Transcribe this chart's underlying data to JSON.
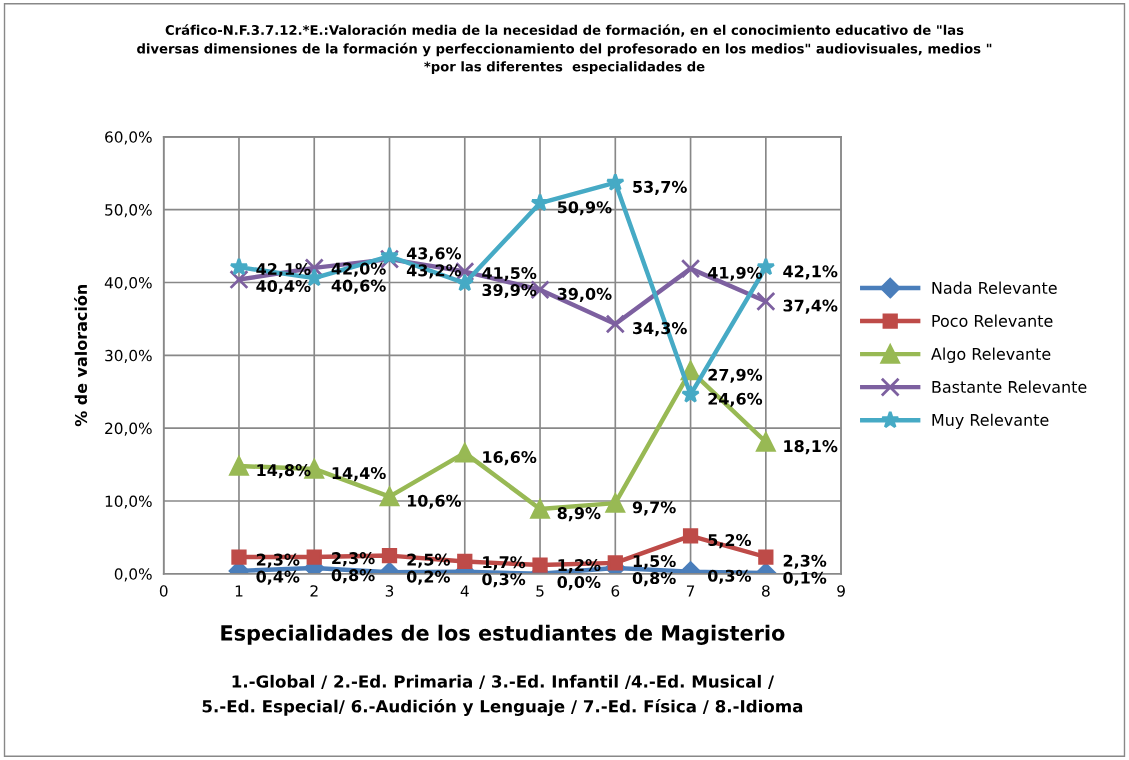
{
  "chart_data": {
    "type": "line",
    "title": "Cráfico-N.F.3.7.12.*E.:Valoración media de la necesidad de formación, en el conocimiento educativo de \"las\ndiversas dimensiones de la formación y perfeccionamiento del profesorado en los medios\" audiovisuales, medios \"\n*por las diferentes  especialidades de",
    "xlabel": "Especialidades de los estudiantes de Magisterio",
    "ylabel": "% de valoración",
    "annotations": [
      "1.-Global / 2.-Ed. Primaria / 3.-Ed. Infantil /4.-Ed. Musical /\n5.-Ed. Especial/ 6.-Audición y Lenguaje / 7.-Ed. Física / 8.-Idioma"
    ],
    "x": [
      1,
      2,
      3,
      4,
      5,
      6,
      7,
      8
    ],
    "xlim": [
      0,
      9
    ],
    "xticks": [
      0,
      1,
      2,
      3,
      4,
      5,
      6,
      7,
      8,
      9
    ],
    "ylim": [
      0,
      60
    ],
    "yticks": [
      {
        "value": 0,
        "label": "0,0%"
      },
      {
        "value": 10,
        "label": "10,0%"
      },
      {
        "value": 20,
        "label": "20,0%"
      },
      {
        "value": 30,
        "label": "30,0%"
      },
      {
        "value": 40,
        "label": "40,0%"
      },
      {
        "value": 50,
        "label": "50,0%"
      },
      {
        "value": 60,
        "label": "60,0%"
      }
    ],
    "grid": true,
    "legend": "right",
    "series": [
      {
        "name": "Nada Relevante",
        "color": "#4a7ebb",
        "marker": "diamond",
        "values": [
          0.4,
          0.8,
          0.2,
          0.3,
          0.0,
          0.8,
          0.3,
          0.1
        ],
        "value_labels": [
          "0,4%",
          "0,8%",
          "0,2%",
          "0,3%",
          "0,0%",
          "0,8%",
          "0,3%",
          "0,1%"
        ]
      },
      {
        "name": "Poco Relevante",
        "color": "#be4b48",
        "marker": "square",
        "values": [
          2.3,
          2.3,
          2.5,
          1.7,
          1.2,
          1.5,
          5.2,
          2.3
        ],
        "value_labels": [
          "2,3%",
          "2,3%",
          "2,5%",
          "1,7%",
          "1,2%",
          "1,5%",
          "5,2%",
          "2,3%"
        ]
      },
      {
        "name": "Algo Relevante",
        "color": "#98b954",
        "marker": "triangle",
        "values": [
          14.8,
          14.4,
          10.6,
          16.6,
          8.9,
          9.7,
          27.9,
          18.1
        ],
        "value_labels": [
          "14,8%",
          "14,4%",
          "10,6%",
          "16,6%",
          "8,9%",
          "9,7%",
          "27,9%",
          "18,1%"
        ]
      },
      {
        "name": "Bastante Relevante",
        "color": "#7d60a0",
        "marker": "cross",
        "values": [
          40.4,
          42.0,
          43.2,
          41.5,
          39.0,
          34.3,
          41.9,
          37.4
        ],
        "value_labels": [
          "40,4%",
          "42,0%",
          "43,2%",
          "41,5%",
          "39,0%",
          "34,3%",
          "41,9%",
          "37,4%"
        ]
      },
      {
        "name": "Muy Relevante",
        "color": "#46aac5",
        "marker": "star",
        "values": [
          42.1,
          40.6,
          43.6,
          39.9,
          50.9,
          53.7,
          24.6,
          42.1
        ],
        "value_labels": [
          "42,1%",
          "40,6%",
          "43,6%",
          "39,9%",
          "50,9%",
          "53,7%",
          "24,6%",
          "42,1%"
        ]
      }
    ]
  }
}
